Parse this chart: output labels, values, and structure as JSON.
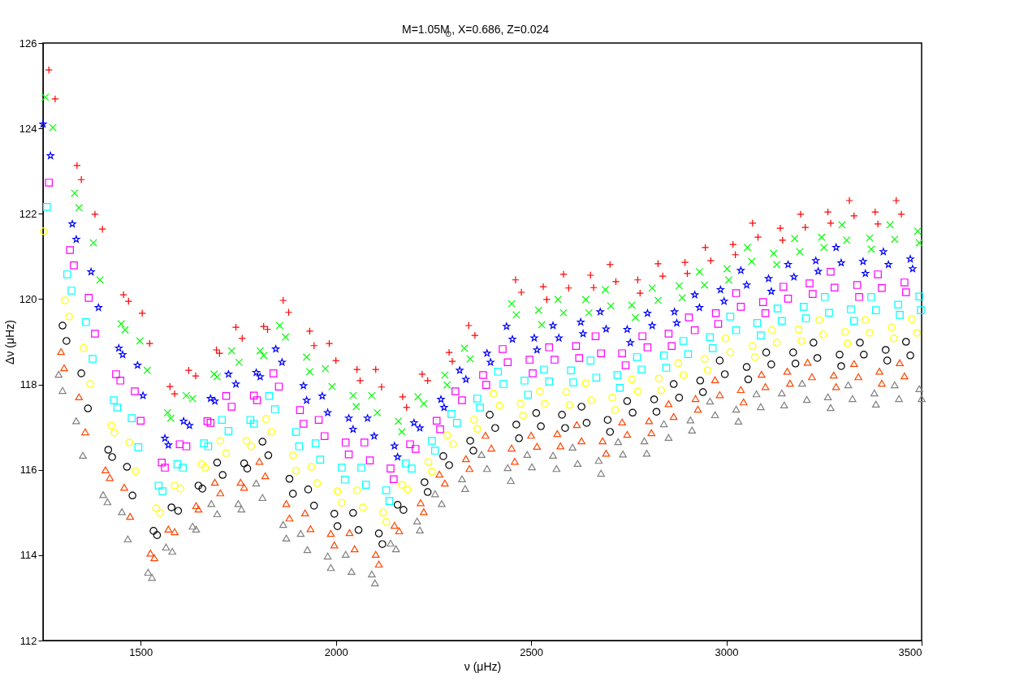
{
  "chart_data": {
    "type": "scatter",
    "title": "M=1.05M$_{⊙}$, X=0.686, Z=0.024",
    "xlabel": "ν (μHz)",
    "ylabel": "Δν (μHz)",
    "xlim": [
      1250,
      3500
    ],
    "xticks": [
      {
        "value": 1500,
        "label": "1500"
      },
      {
        "value": 2000,
        "label": "2000"
      },
      {
        "value": 2500,
        "label": "2500"
      },
      {
        "value": 3000,
        "label": "3000"
      },
      {
        "value": 3500,
        "label": "3500"
      }
    ],
    "ylim": [
      112,
      126
    ],
    "yticks": [
      112,
      114,
      116,
      118,
      120,
      122,
      124,
      126
    ],
    "grid": false,
    "legend": false,
    "series": [
      {
        "color": "#ff0000",
        "marker": "cross",
        "x": [
          1265,
          1281,
          1337,
          1348,
          1383,
          1402,
          1456,
          1469,
          1504,
          1523,
          1575,
          1587,
          1623,
          1641,
          1694,
          1702,
          1744,
          1760,
          1815,
          1825,
          1865,
          1879,
          1933,
          1944,
          1983,
          2000,
          2054,
          2062,
          2102,
          2117,
          2171,
          2181,
          2221,
          2235,
          2290,
          2298,
          2340,
          2356,
          2460,
          2475,
          2531,
          2540,
          2583,
          2596,
          2652,
          2660,
          2702,
          2717,
          2773,
          2779,
          2825,
          2837,
          2894,
          2900,
          2946,
          2960,
          3017,
          3023,
          3067,
          3081,
          3138,
          3144,
          3190,
          3202,
          3260,
          3267,
          3315,
          3327,
          3381,
          3388,
          3435,
          3448
        ],
        "values": [
          125.37,
          124.69,
          123.13,
          122.8,
          121.99,
          121.64,
          120.1,
          119.95,
          119.67,
          118.96,
          117.95,
          117.78,
          118.33,
          118.2,
          118.81,
          118.73,
          119.34,
          119.08,
          119.36,
          119.29,
          119.97,
          119.69,
          119.25,
          118.91,
          118.96,
          118.56,
          118.35,
          118.09,
          118.35,
          117.94,
          117.71,
          117.46,
          118.24,
          118.09,
          118.75,
          118.54,
          119.38,
          119.15,
          120.45,
          120.16,
          120.29,
          119.99,
          120.58,
          120.26,
          120.56,
          120.27,
          120.81,
          120.41,
          120.45,
          120.14,
          120.83,
          120.54,
          120.86,
          120.6,
          121.21,
          120.9,
          121.28,
          121.04,
          121.78,
          121.45,
          121.66,
          121.38,
          121.99,
          121.68,
          122.04,
          121.78,
          122.31,
          121.95,
          122.04,
          121.76,
          122.31,
          121.99
        ]
      },
      {
        "color": "#00ff00",
        "marker": "x",
        "x": [
          1256,
          1275,
          1331,
          1342,
          1379,
          1396,
          1450,
          1460,
          1498,
          1517,
          1569,
          1577,
          1617,
          1633,
          1688,
          1696,
          1733,
          1752,
          1806,
          1815,
          1856,
          1871,
          1925,
          1933,
          1973,
          1990,
          2044,
          2052,
          2092,
          2106,
          2160,
          2169,
          2210,
          2225,
          2279,
          2285,
          2329,
          2344,
          2450,
          2462,
          2519,
          2527,
          2569,
          2583,
          2640,
          2648,
          2690,
          2704,
          2758,
          2767,
          2810,
          2825,
          2879,
          2887,
          2931,
          2944,
          3002,
          3006,
          3054,
          3065,
          3121,
          3129,
          3175,
          3188,
          3244,
          3250,
          3296,
          3308,
          3367,
          3371,
          3419,
          3431,
          3490,
          3494
        ],
        "values": [
          124.73,
          124.02,
          122.48,
          122.14,
          121.32,
          120.45,
          119.42,
          119.28,
          119.02,
          118.33,
          117.34,
          117.21,
          117.74,
          117.67,
          118.24,
          118.18,
          118.79,
          118.52,
          118.79,
          118.68,
          119.38,
          119.11,
          118.64,
          118.3,
          118.37,
          117.95,
          117.74,
          117.48,
          117.74,
          117.34,
          117.14,
          116.89,
          117.71,
          117.55,
          118.22,
          117.99,
          118.85,
          118.6,
          119.89,
          119.63,
          119.74,
          119.4,
          119.99,
          119.68,
          119.99,
          119.68,
          120.22,
          119.84,
          119.86,
          119.57,
          120.26,
          119.97,
          120.31,
          120.03,
          120.64,
          120.33,
          120.71,
          120.45,
          121.21,
          120.88,
          121.07,
          120.81,
          121.42,
          121.11,
          121.45,
          121.21,
          121.74,
          121.38,
          121.43,
          121.17,
          121.74,
          121.4,
          121.59,
          121.32
        ]
      },
      {
        "color": "#0000ff",
        "marker": "star",
        "x": [
          1250,
          1269,
          1325,
          1335,
          1373,
          1392,
          1444,
          1454,
          1492,
          1506,
          1562,
          1571,
          1610,
          1625,
          1679,
          1690,
          1725,
          1744,
          1796,
          1806,
          1846,
          1862,
          1917,
          1925,
          1965,
          1979,
          2033,
          2044,
          2081,
          2098,
          2150,
          2158,
          2200,
          2215,
          2269,
          2277,
          2317,
          2333,
          2387,
          2396,
          2437,
          2452,
          2508,
          2515,
          2556,
          2571,
          2627,
          2633,
          2677,
          2692,
          2746,
          2754,
          2798,
          2810,
          2867,
          2873,
          2919,
          2931,
          2985,
          2994,
          3037,
          3052,
          3108,
          3115,
          3158,
          3173,
          3229,
          3235,
          3281,
          3294,
          3350,
          3356,
          3402,
          3415,
          3471,
          3477
        ],
        "values": [
          124.1,
          123.36,
          121.76,
          121.4,
          120.64,
          119.8,
          118.85,
          118.7,
          118.45,
          117.74,
          116.74,
          116.58,
          117.14,
          117.04,
          117.67,
          117.61,
          118.24,
          118.01,
          118.28,
          118.18,
          118.83,
          118.52,
          117.97,
          117.63,
          117.73,
          117.34,
          117.21,
          116.95,
          117.21,
          116.79,
          116.56,
          116.3,
          117.1,
          116.98,
          117.65,
          117.46,
          118.33,
          118.12,
          118.73,
          118.52,
          119.36,
          119.06,
          119.09,
          118.81,
          119.38,
          119.09,
          119.46,
          119.19,
          119.7,
          119.3,
          119.29,
          118.98,
          119.67,
          119.38,
          119.7,
          119.44,
          120.1,
          119.8,
          120.22,
          119.95,
          120.67,
          120.33,
          120.48,
          120.18,
          120.81,
          120.52,
          120.9,
          120.65,
          121.21,
          120.85,
          120.88,
          120.6,
          121.11,
          120.81,
          120.94,
          120.71
        ]
      },
      {
        "color": "#ff00ff",
        "marker": "square",
        "x": [
          1265,
          1319,
          1329,
          1367,
          1383,
          1437,
          1448,
          1485,
          1500,
          1554,
          1562,
          1600,
          1617,
          1671,
          1679,
          1719,
          1733,
          1790,
          1798,
          1840,
          1854,
          1908,
          1917,
          1956,
          1971,
          2025,
          2033,
          2073,
          2087,
          2140,
          2148,
          2190,
          2204,
          2258,
          2267,
          2306,
          2323,
          2377,
          2385,
          2427,
          2440,
          2496,
          2504,
          2546,
          2560,
          2615,
          2623,
          2665,
          2679,
          2733,
          2742,
          2785,
          2798,
          2852,
          2860,
          2904,
          2919,
          2973,
          2979,
          3025,
          3037,
          3094,
          3100,
          3146,
          3158,
          3213,
          3221,
          3267,
          3277,
          3335,
          3340,
          3388,
          3398,
          3456,
          3460
        ],
        "values": [
          122.73,
          121.15,
          120.79,
          120.03,
          119.19,
          118.24,
          118.09,
          117.84,
          117.15,
          116.17,
          116.05,
          116.6,
          116.55,
          117.14,
          117.1,
          117.73,
          117.48,
          117.74,
          117.63,
          118.26,
          117.95,
          117.4,
          117.08,
          117.17,
          116.79,
          116.64,
          116.36,
          116.64,
          116.22,
          116.03,
          115.78,
          116.6,
          116.49,
          117.15,
          116.95,
          117.84,
          117.63,
          118.22,
          117.99,
          118.83,
          118.52,
          118.58,
          118.26,
          118.87,
          118.58,
          118.9,
          118.62,
          119.13,
          118.73,
          118.73,
          118.45,
          119.13,
          118.87,
          119.19,
          118.9,
          119.57,
          119.27,
          119.67,
          119.42,
          120.14,
          119.82,
          119.93,
          119.67,
          120.29,
          120.01,
          120.37,
          120.12,
          120.64,
          120.27,
          120.33,
          120.05,
          120.58,
          120.26,
          120.39,
          120.16
        ]
      },
      {
        "color": "#00ffff",
        "marker": "square",
        "x": [
          1260,
          1312,
          1323,
          1360,
          1377,
          1431,
          1440,
          1477,
          1494,
          1546,
          1556,
          1594,
          1608,
          1662,
          1673,
          1708,
          1725,
          1781,
          1790,
          1829,
          1844,
          1898,
          1906,
          1948,
          1960,
          2015,
          2023,
          2065,
          2077,
          2129,
          2137,
          2179,
          2194,
          2246,
          2254,
          2296,
          2310,
          2362,
          2369,
          2415,
          2429,
          2483,
          2492,
          2533,
          2546,
          2602,
          2608,
          2652,
          2667,
          2721,
          2727,
          2771,
          2783,
          2840,
          2846,
          2890,
          2902,
          2958,
          2965,
          3010,
          3025,
          3079,
          3088,
          3131,
          3142,
          3198,
          3204,
          3252,
          3263,
          3319,
          3327,
          3371,
          3383,
          3440,
          3444,
          3494,
          3498
        ],
        "values": [
          122.16,
          120.58,
          120.2,
          119.46,
          118.6,
          117.63,
          117.46,
          117.21,
          116.53,
          115.63,
          115.5,
          116.13,
          116.05,
          116.62,
          116.55,
          117.17,
          116.91,
          117.17,
          117.08,
          117.73,
          117.42,
          116.89,
          116.55,
          116.62,
          116.24,
          116.05,
          115.77,
          116.05,
          115.65,
          115.52,
          115.27,
          116.15,
          116.03,
          116.68,
          116.45,
          117.31,
          117.1,
          117.67,
          117.46,
          118.3,
          118.01,
          118.09,
          117.76,
          118.35,
          118.07,
          118.33,
          118.05,
          118.56,
          118.16,
          118.22,
          117.92,
          118.64,
          118.35,
          118.68,
          118.39,
          119.02,
          118.71,
          119.11,
          118.85,
          119.59,
          119.27,
          119.44,
          119.15,
          119.78,
          119.49,
          119.82,
          119.55,
          120.05,
          119.68,
          119.76,
          119.49,
          120.05,
          119.74,
          119.87,
          119.63,
          120.06,
          119.74
        ]
      },
      {
        "color": "#ffff00",
        "marker": "circle",
        "x": [
          1252,
          1306,
          1317,
          1354,
          1371,
          1425,
          1433,
          1471,
          1487,
          1540,
          1550,
          1587,
          1602,
          1656,
          1665,
          1704,
          1719,
          1771,
          1783,
          1821,
          1835,
          1890,
          1898,
          1937,
          1952,
          2004,
          2015,
          2054,
          2069,
          2121,
          2129,
          2169,
          2183,
          2237,
          2246,
          2285,
          2300,
          2354,
          2362,
          2404,
          2419,
          2473,
          2479,
          2523,
          2535,
          2590,
          2598,
          2640,
          2654,
          2708,
          2715,
          2758,
          2773,
          2827,
          2833,
          2877,
          2890,
          2944,
          2952,
          2998,
          3010,
          3067,
          3073,
          3117,
          3129,
          3185,
          3192,
          3238,
          3248,
          3304,
          3310,
          3356,
          3367,
          3423,
          3429,
          3475,
          3488
        ],
        "values": [
          121.59,
          119.97,
          119.59,
          118.85,
          118.01,
          117.04,
          116.87,
          116.64,
          115.97,
          115.1,
          114.99,
          115.63,
          115.56,
          116.13,
          116.05,
          116.68,
          116.39,
          116.68,
          116.55,
          117.19,
          116.89,
          116.34,
          115.98,
          116.07,
          115.69,
          115.5,
          115.23,
          115.52,
          115.12,
          115.0,
          114.78,
          115.65,
          115.54,
          116.18,
          115.96,
          116.81,
          116.6,
          117.17,
          116.96,
          117.78,
          117.5,
          117.55,
          117.27,
          117.84,
          117.55,
          117.82,
          117.52,
          118.03,
          117.63,
          117.69,
          117.4,
          118.12,
          117.84,
          118.14,
          117.86,
          118.5,
          118.22,
          118.6,
          118.33,
          119.08,
          118.75,
          118.9,
          118.64,
          119.27,
          118.98,
          119.29,
          119.02,
          119.51,
          119.17,
          119.23,
          118.96,
          119.51,
          119.21,
          119.34,
          119.08,
          119.53,
          119.21
        ]
      },
      {
        "color": "#000000",
        "marker": "circle",
        "x": [
          1300,
          1310,
          1348,
          1365,
          1417,
          1427,
          1465,
          1479,
          1533,
          1542,
          1579,
          1596,
          1648,
          1658,
          1696,
          1710,
          1765,
          1773,
          1812,
          1827,
          1881,
          1890,
          1929,
          1944,
          1996,
          2004,
          2044,
          2058,
          2110,
          2119,
          2158,
          2173,
          2227,
          2235,
          2275,
          2290,
          2344,
          2352,
          2394,
          2408,
          2462,
          2469,
          2513,
          2525,
          2579,
          2587,
          2629,
          2642,
          2696,
          2702,
          2746,
          2760,
          2815,
          2821,
          2865,
          2879,
          2933,
          2940,
          2983,
          2996,
          3052,
          3056,
          3102,
          3115,
          3171,
          3177,
          3223,
          3233,
          3290,
          3294,
          3342,
          3352,
          3408,
          3412,
          3460,
          3471
        ],
        "values": [
          119.38,
          119.02,
          118.26,
          117.44,
          116.47,
          116.3,
          116.07,
          115.4,
          114.57,
          114.47,
          115.12,
          115.04,
          115.63,
          115.56,
          116.17,
          115.88,
          116.15,
          116.03,
          116.66,
          116.34,
          115.79,
          115.44,
          115.54,
          115.16,
          114.97,
          114.68,
          114.99,
          114.59,
          114.51,
          114.26,
          115.18,
          115.06,
          115.71,
          115.48,
          116.32,
          116.11,
          116.68,
          116.45,
          117.29,
          116.98,
          117.06,
          116.74,
          117.33,
          117.02,
          117.29,
          116.98,
          117.48,
          117.1,
          117.17,
          116.89,
          117.61,
          117.34,
          117.65,
          117.36,
          118.01,
          117.69,
          118.09,
          117.82,
          118.56,
          118.24,
          118.41,
          118.12,
          118.75,
          118.47,
          118.75,
          118.49,
          118.98,
          118.62,
          118.7,
          118.43,
          118.98,
          118.7,
          118.81,
          118.56,
          119.0,
          118.68
        ]
      },
      {
        "color": "#ff4500",
        "marker": "triangle",
        "x": [
          1296,
          1304,
          1342,
          1358,
          1410,
          1421,
          1458,
          1473,
          1525,
          1535,
          1571,
          1587,
          1642,
          1648,
          1690,
          1704,
          1756,
          1765,
          1804,
          1819,
          1873,
          1881,
          1921,
          1935,
          1987,
          1996,
          2035,
          2048,
          2102,
          2110,
          2150,
          2162,
          2217,
          2225,
          2265,
          2279,
          2333,
          2342,
          2383,
          2398,
          2450,
          2458,
          2500,
          2515,
          2567,
          2575,
          2617,
          2629,
          2683,
          2692,
          2733,
          2746,
          2802,
          2808,
          2852,
          2865,
          2921,
          2927,
          2971,
          2983,
          3037,
          3044,
          3090,
          3100,
          3156,
          3163,
          3208,
          3219,
          3275,
          3281,
          3327,
          3338,
          3392,
          3398,
          3444,
          3456
        ],
        "values": [
          118.77,
          118.39,
          117.71,
          116.89,
          116.0,
          115.82,
          115.59,
          114.91,
          114.05,
          113.94,
          114.61,
          114.55,
          115.16,
          115.08,
          115.71,
          115.46,
          115.71,
          115.59,
          116.2,
          115.86,
          115.21,
          114.87,
          114.99,
          114.62,
          114.51,
          114.24,
          114.53,
          114.15,
          114.02,
          113.79,
          114.7,
          114.57,
          115.23,
          115.02,
          115.9,
          115.69,
          116.26,
          116.03,
          116.81,
          116.51,
          116.51,
          116.2,
          116.81,
          116.55,
          116.85,
          116.56,
          117.06,
          116.68,
          116.68,
          116.39,
          117.12,
          116.83,
          117.15,
          116.87,
          117.55,
          117.25,
          117.67,
          117.42,
          118.11,
          117.76,
          117.88,
          117.59,
          118.24,
          117.95,
          118.31,
          118.03,
          118.52,
          118.18,
          118.22,
          117.95,
          118.49,
          118.18,
          118.31,
          118.03,
          118.51,
          118.2
        ]
      },
      {
        "color": "#808080",
        "marker": "triangle",
        "x": [
          1290,
          1300,
          1335,
          1352,
          1404,
          1415,
          1452,
          1467,
          1519,
          1529,
          1565,
          1581,
          1633,
          1642,
          1681,
          1696,
          1750,
          1758,
          1796,
          1812,
          1865,
          1873,
          1910,
          1927,
          1979,
          1987,
          2025,
          2040,
          2092,
          2100,
          2140,
          2154,
          2208,
          2215,
          2254,
          2271,
          2323,
          2331,
          2373,
          2387,
          2440,
          2448,
          2490,
          2502,
          2556,
          2565,
          2606,
          2619,
          2673,
          2679,
          2723,
          2735,
          2790,
          2796,
          2840,
          2852,
          2908,
          2912,
          2958,
          2971,
          3025,
          3031,
          3077,
          3088,
          3142,
          3148,
          3194,
          3206,
          3260,
          3267,
          3312,
          3323,
          3379,
          3383,
          3431,
          3442,
          3494,
          3500
        ],
        "values": [
          118.24,
          117.86,
          117.15,
          116.34,
          115.42,
          115.25,
          115.02,
          114.38,
          113.6,
          113.48,
          114.19,
          114.09,
          114.68,
          114.61,
          115.21,
          114.97,
          115.21,
          115.08,
          115.69,
          115.35,
          114.72,
          114.4,
          114.51,
          114.13,
          113.98,
          113.71,
          114.02,
          113.62,
          113.56,
          113.35,
          114.28,
          114.15,
          114.8,
          114.59,
          115.44,
          115.21,
          115.79,
          115.56,
          116.36,
          116.03,
          116.05,
          115.75,
          116.36,
          116.07,
          116.34,
          116.03,
          116.53,
          116.15,
          116.22,
          115.92,
          116.66,
          116.37,
          116.68,
          116.39,
          117.08,
          116.76,
          117.17,
          116.93,
          117.61,
          117.29,
          117.42,
          117.14,
          117.78,
          117.48,
          117.8,
          117.52,
          118.03,
          117.65,
          117.71,
          117.46,
          117.99,
          117.67,
          117.8,
          117.54,
          117.99,
          117.67,
          117.9,
          117.67
        ]
      }
    ]
  }
}
